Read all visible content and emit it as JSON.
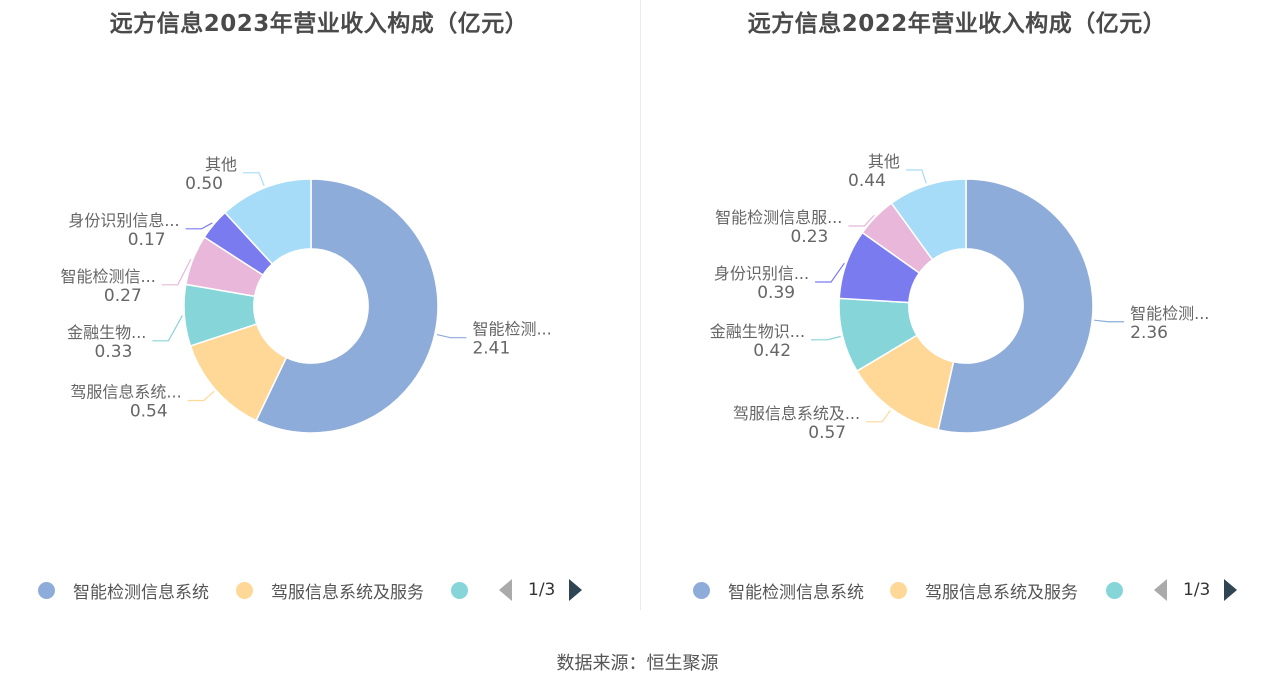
{
  "charts": [
    {
      "title": "远方信息2023年营业收入构成（亿元）",
      "legend": {
        "items": [
          {
            "label": "智能检测信息系统",
            "color": "#8eacd9"
          },
          {
            "label": "驾服信息系统及服务",
            "color": "#ffd898"
          },
          {
            "label": "",
            "color": "#86d5d9"
          }
        ],
        "page": "1/3"
      }
    },
    {
      "title": "远方信息2022年营业收入构成（亿元）",
      "legend": {
        "items": [
          {
            "label": "智能检测信息系统",
            "color": "#8eacd9"
          },
          {
            "label": "驾服信息系统及服务",
            "color": "#ffd898"
          },
          {
            "label": "",
            "color": "#86d5d9"
          }
        ],
        "page": "1/3"
      }
    }
  ],
  "chart_data": [
    {
      "type": "pie",
      "title": "远方信息2023年营业收入构成（亿元）",
      "inner_radius_ratio": 0.45,
      "series": [
        {
          "name": "智能检测信息系统",
          "short_label": "智能检测...",
          "value": 2.41,
          "color": "#8eacd9"
        },
        {
          "name": "驾服信息系统及服务",
          "short_label": "驾服信息系统...",
          "value": 0.54,
          "color": "#ffd898"
        },
        {
          "name": "金融生物识别",
          "short_label": "金融生物...",
          "value": 0.33,
          "color": "#86d5d9"
        },
        {
          "name": "智能检测信息服务",
          "short_label": "智能检测信...",
          "value": 0.27,
          "color": "#e8b7d9"
        },
        {
          "name": "身份识别信息系统",
          "short_label": "身份识别信息...",
          "value": 0.17,
          "color": "#7b7bf0"
        },
        {
          "name": "其他",
          "short_label": "其他",
          "value": 0.5,
          "color": "#a6dcf8"
        }
      ]
    },
    {
      "type": "pie",
      "title": "远方信息2022年营业收入构成（亿元）",
      "inner_radius_ratio": 0.45,
      "series": [
        {
          "name": "智能检测信息系统",
          "short_label": "智能检测...",
          "value": 2.36,
          "color": "#8eacd9"
        },
        {
          "name": "驾服信息系统及服务",
          "short_label": "驾服信息系统及...",
          "value": 0.57,
          "color": "#ffd898"
        },
        {
          "name": "金融生物识别",
          "short_label": "金融生物识...",
          "value": 0.42,
          "color": "#86d5d9"
        },
        {
          "name": "身份识别信息系统",
          "short_label": "身份识别信...",
          "value": 0.39,
          "color": "#7b7bf0"
        },
        {
          "name": "智能检测信息服务",
          "short_label": "智能检测信息服...",
          "value": 0.23,
          "color": "#e8b7d9"
        },
        {
          "name": "其他",
          "short_label": "其他",
          "value": 0.44,
          "color": "#a6dcf8"
        }
      ]
    }
  ],
  "source": "数据来源：恒生聚源"
}
